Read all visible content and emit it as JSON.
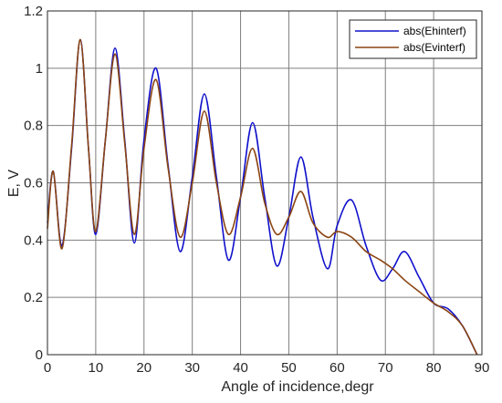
{
  "chart_data": {
    "type": "line",
    "title": "",
    "xlabel": "Angle of incidence,degr",
    "ylabel": "E, V",
    "xlim": [
      0,
      90
    ],
    "ylim": [
      0,
      1.2
    ],
    "x_ticks": [
      "0",
      "10",
      "20",
      "30",
      "40",
      "50",
      "60",
      "70",
      "80",
      "90"
    ],
    "y_ticks": [
      "0",
      "0.2",
      "0.4",
      "0.6",
      "0.8",
      "1",
      "1.2"
    ],
    "grid": true,
    "legend_position": "top-right",
    "series": [
      {
        "name": "abs(Ehinterf)",
        "color": "#1010cc",
        "x": [
          0,
          1.2,
          3,
          5,
          6.8,
          8.5,
          10,
          12,
          14,
          16,
          18,
          20,
          22.5,
          25,
          27.5,
          30,
          32.5,
          35,
          37.5,
          40,
          42.5,
          45,
          47.5,
          50,
          52.5,
          55,
          58,
          60,
          63,
          66,
          69,
          71.5,
          74,
          77,
          80,
          83,
          86,
          89
        ],
        "y": [
          0.46,
          0.64,
          0.38,
          0.72,
          1.1,
          0.72,
          0.42,
          0.75,
          1.07,
          0.75,
          0.39,
          0.75,
          1.0,
          0.66,
          0.36,
          0.62,
          0.91,
          0.62,
          0.33,
          0.55,
          0.81,
          0.55,
          0.31,
          0.48,
          0.69,
          0.48,
          0.3,
          0.45,
          0.54,
          0.38,
          0.26,
          0.3,
          0.36,
          0.27,
          0.18,
          0.16,
          0.1,
          0.0
        ]
      },
      {
        "name": "abs(Evinterf)",
        "color": "#8b4513",
        "x": [
          0,
          1.2,
          3,
          5,
          6.8,
          8.5,
          10,
          12,
          14,
          16,
          18,
          20,
          22.5,
          25,
          27.5,
          30,
          32.5,
          35,
          37.5,
          40,
          42.5,
          45,
          47.5,
          50,
          52.5,
          55,
          58,
          60,
          63,
          66,
          69,
          71.5,
          74,
          77,
          80,
          83,
          86,
          89
        ],
        "y": [
          0.44,
          0.64,
          0.37,
          0.73,
          1.1,
          0.72,
          0.43,
          0.75,
          1.05,
          0.74,
          0.42,
          0.72,
          0.96,
          0.65,
          0.41,
          0.6,
          0.85,
          0.6,
          0.42,
          0.55,
          0.72,
          0.53,
          0.42,
          0.48,
          0.57,
          0.46,
          0.41,
          0.43,
          0.41,
          0.36,
          0.33,
          0.3,
          0.26,
          0.22,
          0.18,
          0.15,
          0.1,
          0.0
        ]
      }
    ]
  }
}
